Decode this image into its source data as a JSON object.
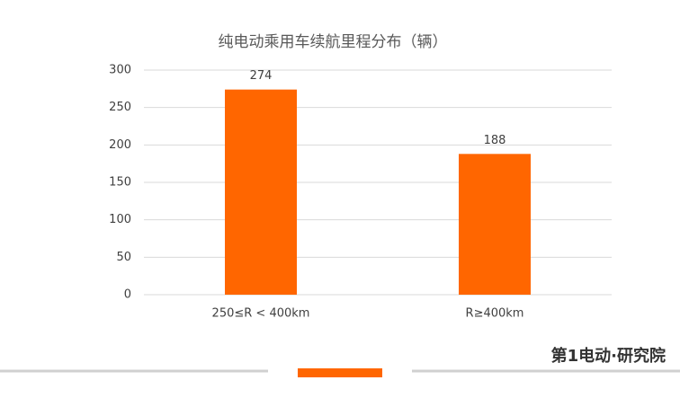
{
  "chart_data": {
    "type": "bar",
    "title": "纯电动乘用车续航里程分布（辆）",
    "categories": [
      "250≤R < 400km",
      "R≥400km"
    ],
    "values": [
      274,
      188
    ],
    "color": "#ff6600",
    "ylim": [
      0,
      300
    ],
    "yticks": [
      0,
      50,
      100,
      150,
      200,
      250,
      300
    ],
    "grid": true,
    "logo_text": "第1电动·研究院"
  }
}
